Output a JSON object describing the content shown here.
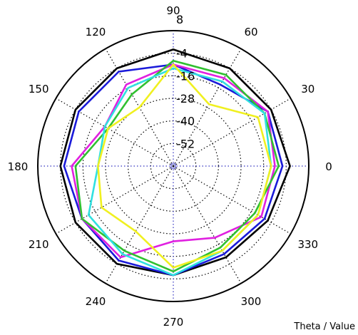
{
  "chart_data": {
    "type": "polar-line",
    "xlabel": "Theta / Value",
    "theta_ticks": [
      "0",
      "30",
      "60",
      "90",
      "120",
      "150",
      "180",
      "210",
      "240",
      "270",
      "300",
      "330"
    ],
    "r_ticks": [
      "8",
      "-4",
      "-16",
      "-28",
      "-40",
      "-52"
    ],
    "r_range": [
      -64,
      8
    ],
    "grid": true,
    "theta_step_deg": 30,
    "series": [
      {
        "color": "#000000",
        "values": [
          -2,
          -4,
          -4,
          -2,
          -4,
          -4,
          -4,
          -4,
          -4,
          -6,
          -8,
          -6
        ]
      },
      {
        "color": "#1a1ad9",
        "values": [
          -6,
          -6,
          -14,
          -10,
          -6,
          -6,
          -6,
          -8,
          -6,
          -6,
          -10,
          -8
        ]
      },
      {
        "color": "#e020e0",
        "values": [
          -10,
          -6,
          -10,
          -10,
          -14,
          -22,
          -10,
          -8,
          -8,
          -24,
          -20,
          -10
        ]
      },
      {
        "color": "#30c030",
        "values": [
          -8,
          -8,
          -8,
          -8,
          -20,
          -24,
          -12,
          -8,
          -12,
          -8,
          -14,
          -14
        ]
      },
      {
        "color": "#30e0e0",
        "values": [
          -12,
          -8,
          -12,
          -12,
          -16,
          -22,
          -24,
          -12,
          -10,
          -6,
          -12,
          -12
        ]
      },
      {
        "color": "#f0f020",
        "values": [
          -12,
          -12,
          -26,
          -10,
          -28,
          -24,
          -24,
          -20,
          -24,
          -10,
          -12,
          -12
        ]
      }
    ]
  }
}
